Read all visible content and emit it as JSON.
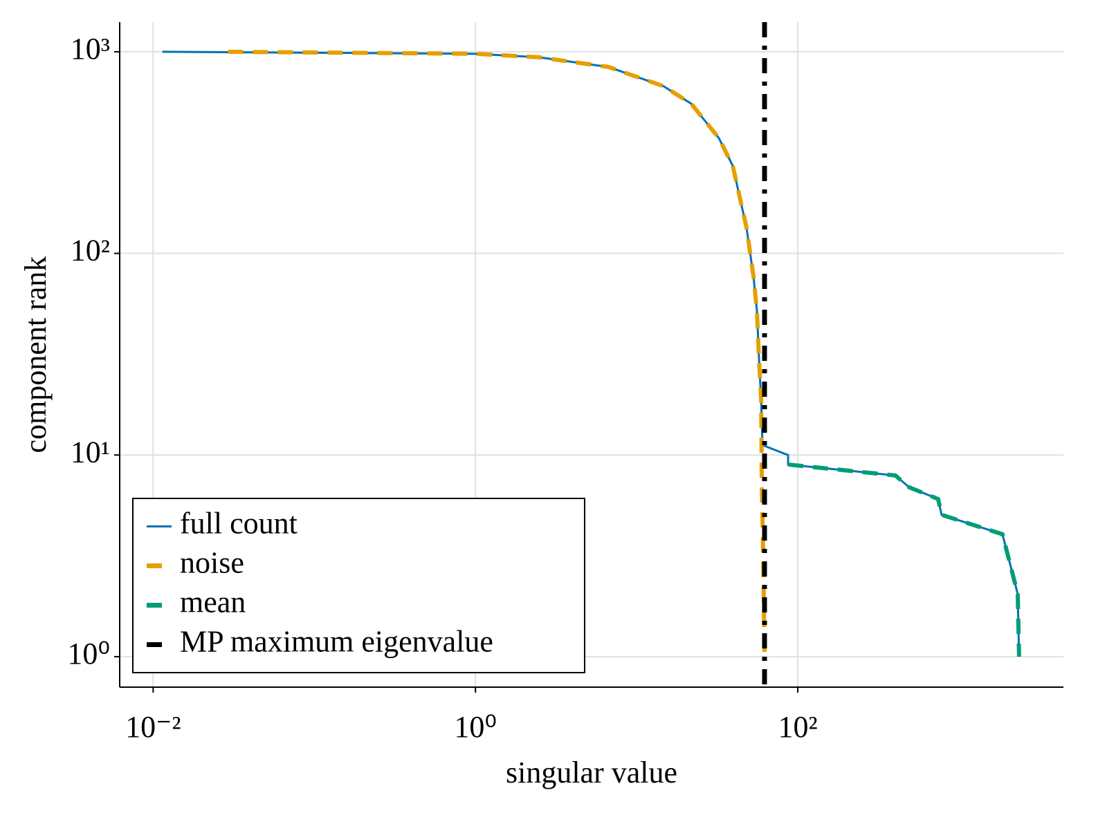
{
  "chart_data": {
    "type": "line",
    "x_label": "singular value",
    "y_label": "component rank",
    "log_x": true,
    "log_y": true,
    "grid": true,
    "legend_position": "bottom-left",
    "xlim": [
      0.0062,
      4450
    ],
    "ylim": [
      0.706,
      1403
    ],
    "xticks": [
      {
        "value": 0.01,
        "label": "10⁻²"
      },
      {
        "value": 1,
        "label": "10⁰"
      },
      {
        "value": 100,
        "label": "10²"
      }
    ],
    "yticks": [
      {
        "value": 1,
        "label": "10⁰"
      },
      {
        "value": 10,
        "label": "10¹"
      },
      {
        "value": 100,
        "label": "10²"
      },
      {
        "value": 1000,
        "label": "10³"
      }
    ],
    "series": [
      {
        "name": "full count",
        "color": "#0072b2",
        "style": "solid",
        "x": [
          0.0114,
          1,
          2.48,
          6.67,
          14.7,
          21.8,
          32.4,
          39.5,
          48.1,
          53.1,
          55.8,
          57.5,
          59.3,
          60.4,
          87.1,
          87.1,
          403,
          491,
          743,
          781,
          1862,
          2099,
          2317,
          2362
        ],
        "values": [
          1000,
          977,
          939,
          841,
          675,
          553,
          373,
          272,
          134,
          76.9,
          51.8,
          29.8,
          18.6,
          11.2,
          10,
          8.97,
          7.92,
          6.92,
          6.05,
          5.05,
          4.05,
          2.79,
          2.04,
          1
        ]
      },
      {
        "name": "noise",
        "color": "#e69f00",
        "style": "dashed",
        "x": [
          0.0291,
          1,
          2.48,
          6.67,
          14.7,
          21.8,
          32.4,
          39.5,
          48.1,
          53.1,
          55.8,
          57.5,
          59.3,
          59.8,
          61.0,
          62.2
        ],
        "values": [
          1000,
          977,
          939,
          841,
          675,
          553,
          373,
          272,
          134,
          76.9,
          51.8,
          29.8,
          18.6,
          7.2,
          3.27,
          1
        ]
      },
      {
        "name": "mean",
        "color": "#009e73",
        "style": "dashed",
        "x": [
          87.1,
          403,
          491,
          743,
          781,
          1862,
          2099,
          2317,
          2362
        ],
        "values": [
          8.97,
          7.92,
          6.92,
          6.05,
          5.05,
          4.05,
          2.79,
          2.04,
          1
        ]
      }
    ],
    "vline": {
      "name": "MP maximum eigenvalue",
      "x": 62.2,
      "color": "#000000",
      "style": "dashdot"
    }
  }
}
